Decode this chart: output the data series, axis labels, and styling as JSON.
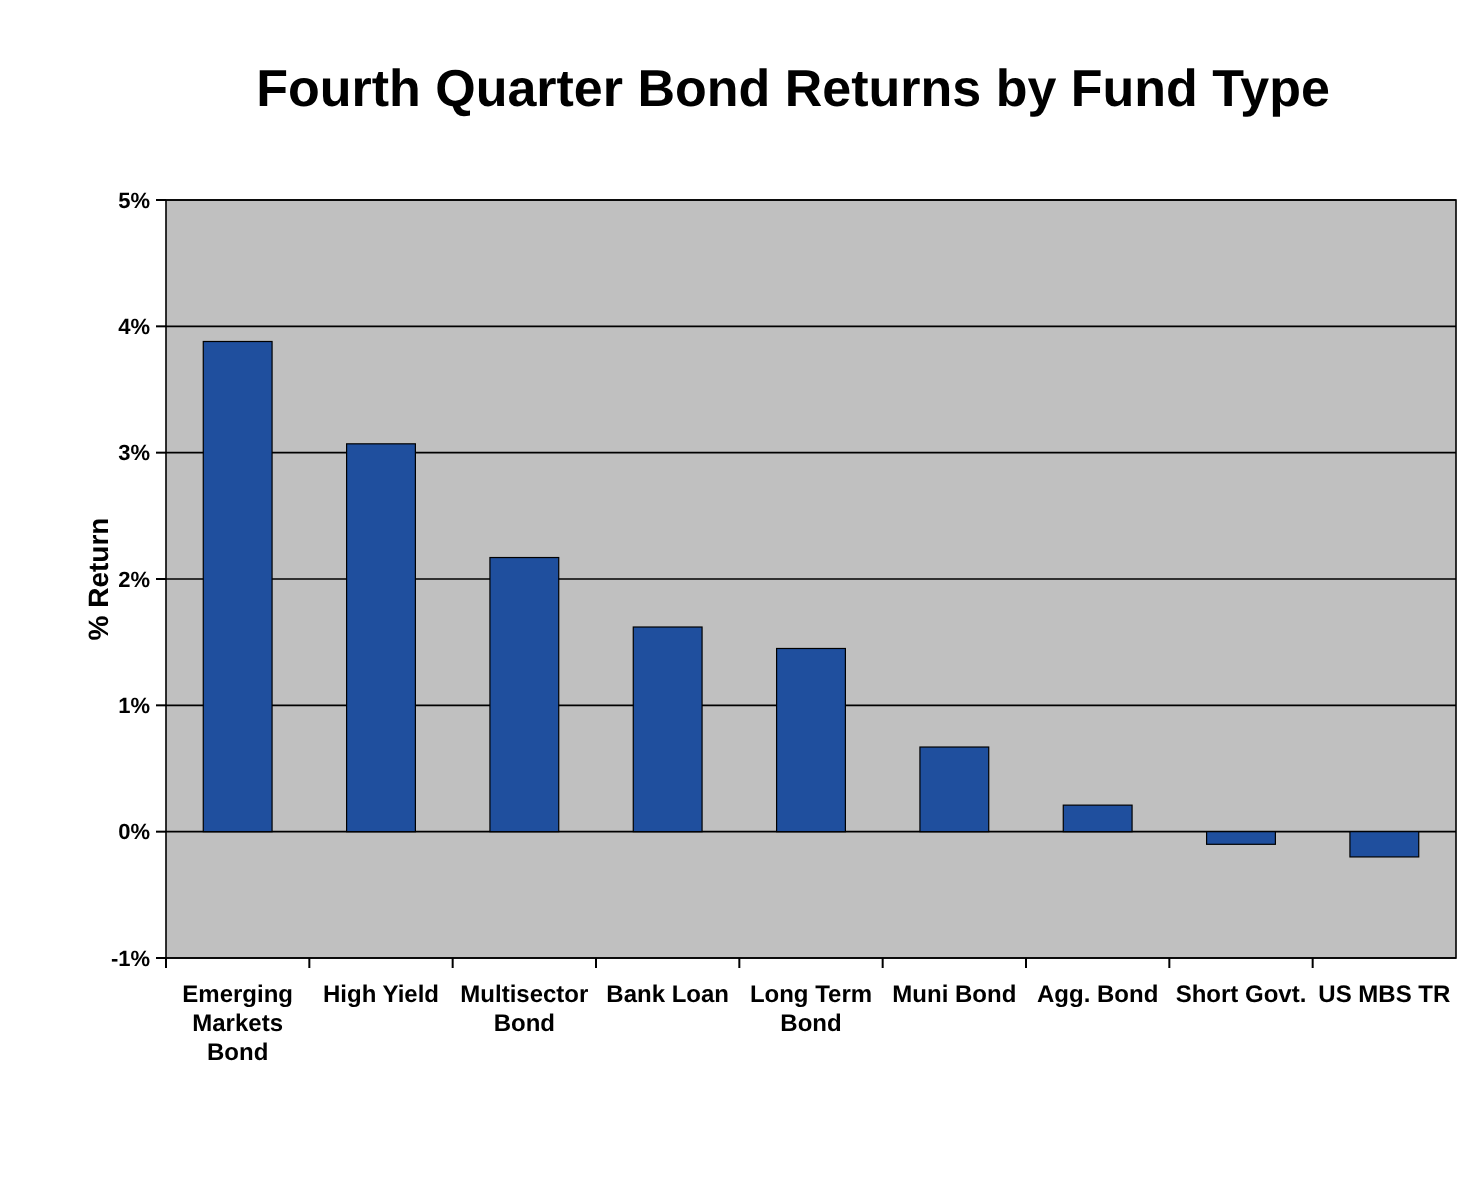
{
  "chart_data": {
    "type": "bar",
    "title": "Fourth Quarter Bond Returns by Fund Type",
    "ylabel": "% Return",
    "categories": [
      "Emerging Markets Bond",
      "High Yield",
      "Multisector Bond",
      "Bank Loan",
      "Long Term Bond",
      "Muni Bond",
      "Agg. Bond",
      "Short Govt.",
      "US MBS TR"
    ],
    "values": [
      3.88,
      3.07,
      2.17,
      1.62,
      1.45,
      0.67,
      0.21,
      -0.1,
      -0.2
    ],
    "color": "#1f4f9e",
    "ylim": [
      -1,
      5
    ],
    "yticks": [
      {
        "value": -1,
        "label": "-1%"
      },
      {
        "value": 0,
        "label": "0%"
      },
      {
        "value": 1,
        "label": "1%"
      },
      {
        "value": 2,
        "label": "2%"
      },
      {
        "value": 3,
        "label": "3%"
      },
      {
        "value": 4,
        "label": "4%"
      },
      {
        "value": 5,
        "label": "5%"
      }
    ],
    "grid": "y"
  }
}
